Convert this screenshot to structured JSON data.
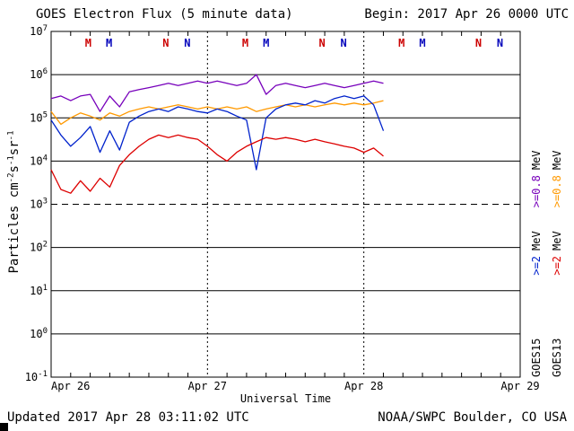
{
  "header": {
    "title": "GOES Electron Flux (5 minute data)",
    "begin": "Begin: 2017 Apr 26 0000 UTC"
  },
  "footer": {
    "updated": "Updated 2017 Apr 28 03:11:02 UTC",
    "credit": "NOAA/SWPC Boulder, CO USA"
  },
  "axes": {
    "xlabel": "Universal Time",
    "ylabel": {
      "p1": "Particles cm",
      "s1": "-2",
      "p2": "s",
      "s2": "-1",
      "p3": "sr",
      "s3": "-1"
    }
  },
  "legend": {
    "col1": {
      "sat": "GOES15",
      "e2": ">=2",
      "e2_unit": "MeV",
      "e08": ">=0.8",
      "e08_unit": "MeV"
    },
    "col2": {
      "sat": "GOES13",
      "e2": ">=2",
      "e2_unit": "MeV",
      "e08": ">=0.8",
      "e08_unit": "MeV"
    }
  },
  "chart_data": {
    "type": "line",
    "title": "GOES Electron Flux (5 minute data)",
    "xlabel": "Universal Time",
    "ylabel": "Particles cm-2 s-1 sr-1",
    "y_scale": "log10",
    "x_unit": "hours since 2017 Apr 26 0000 UTC",
    "x_range": [
      0,
      72
    ],
    "y_exp_range": [
      -1,
      7
    ],
    "y_tick_exponents": [
      7,
      6,
      5,
      4,
      3,
      2,
      1,
      0,
      -1
    ],
    "threshold_exp": 3,
    "day_lines": [
      24,
      48
    ],
    "minor_tick_step_hours": 3,
    "grid": true,
    "legend_position": "right-margin-rotated",
    "x_ticks": [
      {
        "label": "Apr 26",
        "hour": 0
      },
      {
        "label": "Apr 27",
        "hour": 24
      },
      {
        "label": "Apr 28",
        "hour": 48
      },
      {
        "label": "Apr 29",
        "hour": 72
      }
    ],
    "x_hours": [
      0,
      1.5,
      3,
      4.5,
      6,
      7.5,
      9,
      10.5,
      12,
      13.5,
      15,
      16.5,
      18,
      19.5,
      21,
      22.5,
      24,
      25.5,
      27,
      28.5,
      30,
      31.5,
      33,
      34.5,
      36,
      37.5,
      39,
      40.5,
      42,
      43.5,
      45,
      46.5,
      48,
      49.5,
      51
    ],
    "series": [
      {
        "name": "GOES15 >=0.8 MeV",
        "color": "#7700bb",
        "values": [
          280000.0,
          320000.0,
          250000.0,
          320000.0,
          350000.0,
          140000.0,
          320000.0,
          180000.0,
          400000.0,
          450000.0,
          500000.0,
          560000.0,
          630000.0,
          560000.0,
          630000.0,
          710000.0,
          630000.0,
          710000.0,
          630000.0,
          560000.0,
          630000.0,
          1000000.0,
          350000.0,
          560000.0,
          630000.0,
          560000.0,
          500000.0,
          560000.0,
          630000.0,
          560000.0,
          500000.0,
          560000.0,
          630000.0,
          710000.0,
          630000.0
        ]
      },
      {
        "name": "GOES13 >=0.8 MeV",
        "color": "#ff9900",
        "values": [
          140000.0,
          71000.0,
          100000.0,
          130000.0,
          110000.0,
          89000.0,
          130000.0,
          110000.0,
          140000.0,
          160000.0,
          180000.0,
          160000.0,
          180000.0,
          200000.0,
          180000.0,
          160000.0,
          180000.0,
          160000.0,
          180000.0,
          160000.0,
          180000.0,
          140000.0,
          160000.0,
          180000.0,
          200000.0,
          180000.0,
          200000.0,
          180000.0,
          200000.0,
          220000.0,
          200000.0,
          220000.0,
          200000.0,
          220000.0,
          250000.0
        ]
      },
      {
        "name": "GOES15 >=2 MeV",
        "color": "#0022cc",
        "values": [
          89000.0,
          40000.0,
          22000.0,
          35000.0,
          63000.0,
          16000.0,
          50000.0,
          18000.0,
          79000.0,
          110000.0,
          140000.0,
          160000.0,
          140000.0,
          180000.0,
          160000.0,
          140000.0,
          130000.0,
          160000.0,
          140000.0,
          110000.0,
          89000.0,
          6300.0,
          100000.0,
          160000.0,
          200000.0,
          220000.0,
          200000.0,
          250000.0,
          220000.0,
          280000.0,
          320000.0,
          280000.0,
          320000.0,
          200000.0,
          50000.0
        ]
      },
      {
        "name": "GOES13 >=2 MeV",
        "color": "#dd0000",
        "values": [
          6300.0,
          2200.0,
          1800.0,
          3500.0,
          2000.0,
          4000.0,
          2500.0,
          7900.0,
          14000.0,
          22000.0,
          32000.0,
          40000.0,
          35000.0,
          40000.0,
          35000.0,
          32000.0,
          22000.0,
          14000.0,
          10000.0,
          16000.0,
          22000.0,
          28000.0,
          35000.0,
          32000.0,
          35000.0,
          32000.0,
          28000.0,
          32000.0,
          28000.0,
          25000.0,
          22000.0,
          20000.0,
          16000.0,
          20000.0,
          13000.0
        ]
      }
    ],
    "noon_midnight_markers": [
      {
        "letter": "M",
        "color": "#cc0000",
        "hours": [
          5.7,
          29.8,
          53.8
        ]
      },
      {
        "letter": "M",
        "color": "#0000bb",
        "hours": [
          8.9,
          33.0,
          57.0
        ]
      },
      {
        "letter": "N",
        "color": "#cc0000",
        "hours": [
          17.6,
          41.6,
          65.6
        ]
      },
      {
        "letter": "N",
        "color": "#0000bb",
        "hours": [
          20.9,
          44.9,
          68.9
        ]
      }
    ]
  }
}
